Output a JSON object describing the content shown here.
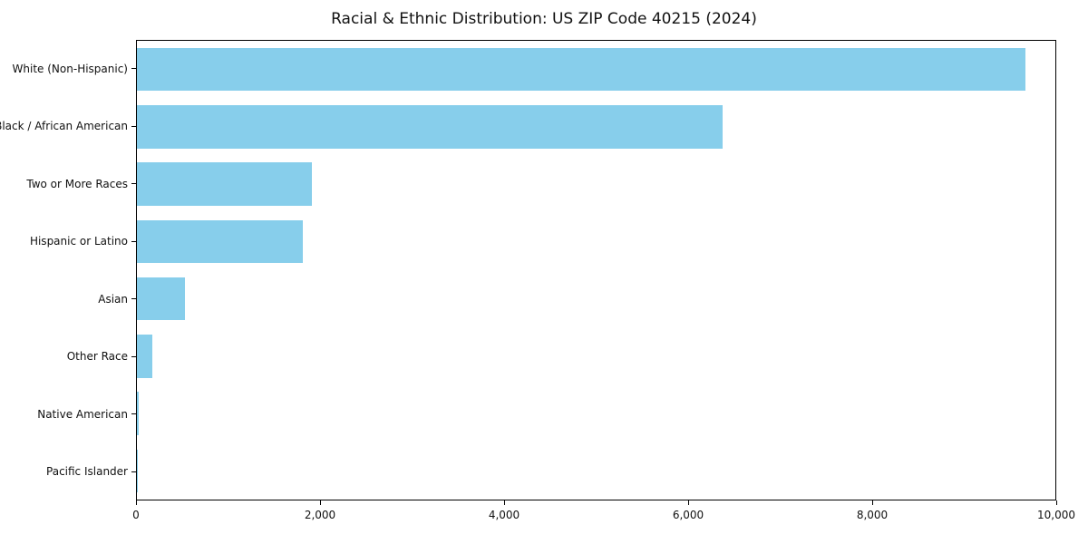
{
  "figure": {
    "background": "#ffffff",
    "border_color": "#000000",
    "text_color": "#111111"
  },
  "chart_data": {
    "type": "bar",
    "orientation": "horizontal",
    "title": "Racial & Ethnic Distribution: US ZIP Code 40215 (2024)",
    "xlabel": "",
    "ylabel": "",
    "categories": [
      "White (Non-Hispanic)",
      "Black / African American",
      "Two or More Races",
      "Hispanic or Latino",
      "Asian",
      "Other Race",
      "Native American",
      "Pacific Islander"
    ],
    "values": [
      9675,
      6380,
      1905,
      1810,
      525,
      170,
      15,
      5
    ],
    "xlim": [
      0,
      10000
    ],
    "xticks": {
      "values": [
        0,
        2000,
        4000,
        6000,
        8000,
        10000
      ],
      "labels": [
        "0",
        "2,000",
        "4,000",
        "6,000",
        "8,000",
        "10,000"
      ]
    },
    "bar_color": "#87CEEB",
    "grid": false,
    "legend": null
  }
}
